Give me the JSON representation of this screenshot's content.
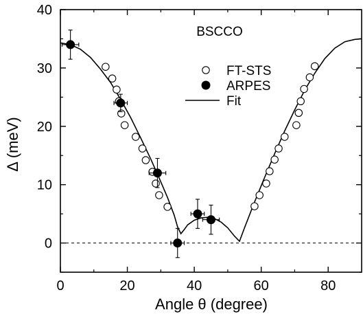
{
  "chart_data": {
    "type": "scatter",
    "annotation": "BSCCO",
    "xlabel": "Angle θ (degree)",
    "ylabel": "Δ (meV)",
    "xlim": [
      0,
      90
    ],
    "ylim": [
      -5,
      40
    ],
    "x_ticks": [
      0,
      20,
      40,
      60,
      80
    ],
    "y_ticks": [
      0,
      10,
      20,
      30,
      40
    ],
    "x_tick_labels": [
      "0",
      "20",
      "40",
      "60",
      "80"
    ],
    "y_tick_labels": [
      "0",
      "10",
      "20",
      "30",
      "40"
    ],
    "reference_line_y": 0,
    "legend_position": "upper-center",
    "colors": {
      "axis": "#000000",
      "marker_open_fill": "#ffffff",
      "marker_filled": "#000000",
      "fit_line": "#000000"
    },
    "series": [
      {
        "name": "FT-STS",
        "kind": "open-circle",
        "points": [
          [
            13.5,
            30.2
          ],
          [
            15.5,
            28.2
          ],
          [
            16.8,
            26.3
          ],
          [
            17.5,
            24.3
          ],
          [
            18.2,
            22.2
          ],
          [
            19.2,
            20.2
          ],
          [
            22.5,
            18.2
          ],
          [
            24.5,
            16.2
          ],
          [
            25.5,
            14.2
          ],
          [
            27.5,
            12.2
          ],
          [
            28.5,
            10.2
          ],
          [
            29.5,
            8.2
          ],
          [
            32.0,
            6.2
          ],
          [
            58.0,
            6.3
          ],
          [
            59.5,
            8.2
          ],
          [
            61.5,
            10.2
          ],
          [
            62.5,
            12.3
          ],
          [
            64.0,
            14.3
          ],
          [
            65.2,
            16.2
          ],
          [
            67.0,
            18.2
          ],
          [
            70.5,
            20.2
          ],
          [
            71.2,
            22.3
          ],
          [
            71.8,
            24.3
          ],
          [
            72.8,
            26.4
          ],
          [
            74.5,
            28.4
          ],
          [
            76.0,
            30.3
          ]
        ]
      },
      {
        "name": "ARPES",
        "kind": "filled-circle",
        "points": [
          {
            "x": 3,
            "y": 34,
            "xerr": 2.5,
            "yerr": 2.5
          },
          {
            "x": 18,
            "y": 24,
            "xerr": 2,
            "yerr": 1.5
          },
          {
            "x": 29,
            "y": 12,
            "xerr": 2.5,
            "yerr": 2.5
          },
          {
            "x": 35,
            "y": 0,
            "xerr": 2,
            "yerr": 2.5
          },
          {
            "x": 41,
            "y": 5,
            "xerr": 2,
            "yerr": 2.5
          },
          {
            "x": 45,
            "y": 4,
            "xerr": 2.5,
            "yerr": 2.5
          }
        ]
      },
      {
        "name": "Fit",
        "kind": "line",
        "points": [
          [
            0,
            34.3
          ],
          [
            3,
            34.0
          ],
          [
            6,
            33.2
          ],
          [
            9,
            31.8
          ],
          [
            12,
            29.8
          ],
          [
            15,
            27.5
          ],
          [
            18,
            24.6
          ],
          [
            21,
            21.5
          ],
          [
            24,
            18.0
          ],
          [
            27,
            14.4
          ],
          [
            30,
            10.5
          ],
          [
            32,
            7.8
          ],
          [
            34,
            4.8
          ],
          [
            35,
            2.8
          ],
          [
            36,
            1.6
          ],
          [
            37,
            2.3
          ],
          [
            38,
            3.1
          ],
          [
            40,
            3.9
          ],
          [
            42,
            4.3
          ],
          [
            44,
            4.4
          ],
          [
            46,
            4.2
          ],
          [
            48,
            3.6
          ],
          [
            50,
            2.6
          ],
          [
            52,
            1.2
          ],
          [
            53.5,
            0.3
          ],
          [
            55,
            2.6
          ],
          [
            58,
            7.0
          ],
          [
            61,
            11.2
          ],
          [
            64,
            15.3
          ],
          [
            67,
            19.2
          ],
          [
            70,
            22.8
          ],
          [
            73,
            26.2
          ],
          [
            76,
            29.1
          ],
          [
            79,
            31.6
          ],
          [
            82,
            33.4
          ],
          [
            85,
            34.5
          ],
          [
            88,
            34.9
          ],
          [
            90,
            35.0
          ]
        ]
      }
    ]
  }
}
